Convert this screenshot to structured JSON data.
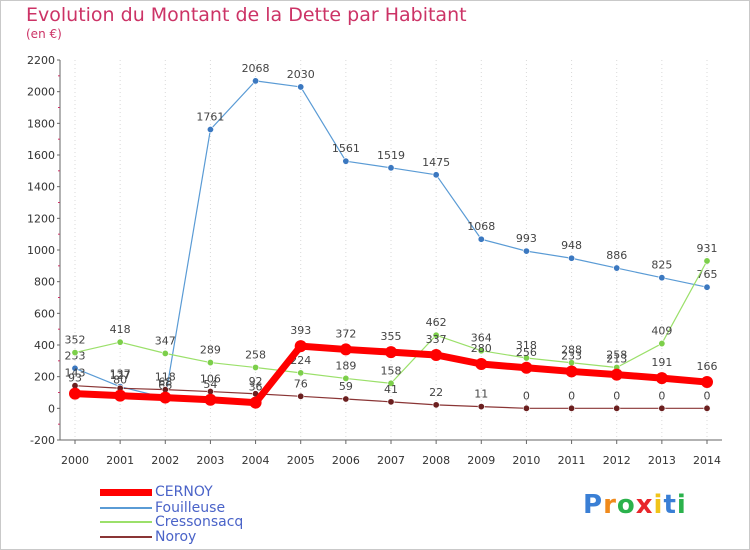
{
  "header": {
    "title": "Evolution du Montant de la Dette par Habitant",
    "subtitle": "(en €)"
  },
  "logo": {
    "letters": [
      "P",
      "r",
      "o",
      "x",
      "i",
      "t",
      "i"
    ],
    "colors": [
      "#3a7fd5",
      "#f08a1c",
      "#2bb24c",
      "#e8262b",
      "#f0c419",
      "#3a7fd5",
      "#2bb24c"
    ]
  },
  "chart_data": {
    "type": "line",
    "title": "Evolution du Montant de la Dette par Habitant",
    "ylabel": "(en €)",
    "xlabel": "",
    "x": [
      "2000",
      "2001",
      "2002",
      "2003",
      "2004",
      "2005",
      "2006",
      "2007",
      "2008",
      "2009",
      "2010",
      "2011",
      "2012",
      "2013",
      "2014"
    ],
    "ylim": [
      -200,
      2200
    ],
    "yticks": [
      -200,
      0,
      200,
      400,
      600,
      800,
      1000,
      1200,
      1400,
      1600,
      1800,
      2000,
      2200
    ],
    "grid": "vertical dotted",
    "legend_position": "bottom-left",
    "series": [
      {
        "name": "Fouilleuse",
        "color": "#5a9bd5",
        "marker": "#3b78c0",
        "line_width": 1.2,
        "values": [
          253,
          137,
          66,
          1761,
          2068,
          2030,
          1561,
          1519,
          1475,
          1068,
          993,
          948,
          886,
          825,
          765
        ],
        "labels": [
          "253",
          "137",
          "66",
          "1761",
          "2068",
          "2030",
          "1561",
          "1519",
          "1475",
          "1068",
          "993",
          "948",
          "886",
          "825",
          "765"
        ]
      },
      {
        "name": "Cressonsacq",
        "color": "#9be06a",
        "marker": "#7ccf4a",
        "line_width": 1.2,
        "values": [
          352,
          418,
          347,
          289,
          258,
          224,
          189,
          158,
          462,
          364,
          318,
          288,
          258,
          409,
          931
        ],
        "labels": [
          "352",
          "418",
          "347",
          "289",
          "258",
          "224",
          "189",
          "158",
          "462",
          "364",
          "318",
          "288",
          "258",
          "409",
          "931"
        ]
      },
      {
        "name": "Noroy",
        "color": "#8a3535",
        "marker": "#6b1f1f",
        "line_width": 1.2,
        "values": [
          143,
          127,
          118,
          106,
          92,
          76,
          59,
          41,
          22,
          11,
          0,
          0,
          0,
          0,
          0
        ],
        "labels": [
          "143",
          "127",
          "118",
          "106",
          "92",
          "76",
          "59",
          "41",
          "22",
          "11",
          "0",
          "0",
          "0",
          "0",
          "0"
        ]
      },
      {
        "name": "CERNOY",
        "color": "#ff0000",
        "marker": "#ff0000",
        "line_width": 7,
        "values": [
          93,
          80,
          68,
          54,
          36,
          393,
          372,
          355,
          337,
          280,
          256,
          233,
          213,
          191,
          166
        ],
        "labels": [
          "93",
          "80",
          "68",
          "54",
          "36",
          "393",
          "372",
          "355",
          "337",
          "280",
          "256",
          "233",
          "213",
          "191",
          "166"
        ]
      }
    ],
    "legend_order": [
      "CERNOY",
      "Fouilleuse",
      "Cressonsacq",
      "Noroy"
    ]
  }
}
